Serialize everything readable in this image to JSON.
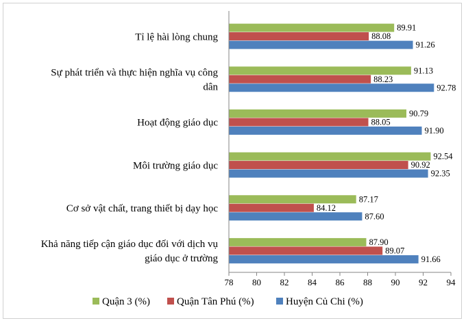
{
  "chart_data": {
    "type": "bar",
    "orientation": "horizontal",
    "categories": [
      [
        "Tỉ lệ hài lòng chung"
      ],
      [
        "Sự phát triển và thực hiện nghĩa vụ công",
        "dân"
      ],
      [
        "Hoạt động giáo dục"
      ],
      [
        "Môi trường giáo dục"
      ],
      [
        "Cơ sở vật chất, trang thiết bị dạy học"
      ],
      [
        "Khả năng tiếp cận giáo dục đối với dịch vụ",
        "giáo dục ở trường"
      ]
    ],
    "series": [
      {
        "name": "Quận 3 (%)",
        "color": "#9BBB59",
        "values": [
          89.91,
          91.13,
          90.79,
          92.54,
          87.17,
          87.9
        ],
        "labels": [
          "89.91",
          "91.13",
          "90.79",
          "92.54",
          "87.17",
          "87.90"
        ]
      },
      {
        "name": "Quận Tân Phú (%)",
        "color": "#C0504D",
        "values": [
          88.08,
          88.23,
          88.05,
          90.92,
          84.12,
          89.07
        ],
        "labels": [
          "88.08",
          "88.23",
          "88.05",
          "90.92",
          "84.12",
          "89.07"
        ]
      },
      {
        "name": "Huyện Củ Chi (%)",
        "color": "#4F81BD",
        "values": [
          91.26,
          92.78,
          91.9,
          92.35,
          87.6,
          91.66
        ],
        "labels": [
          "91.26",
          "92.78",
          "91.90",
          "92.35",
          "87.60",
          "91.66"
        ]
      }
    ],
    "xlim": [
      78,
      94
    ],
    "xticks": [
      "78",
      "80",
      "82",
      "84",
      "86",
      "88",
      "90",
      "92",
      "94"
    ],
    "title": "",
    "xlabel": "",
    "ylabel": "",
    "grid": false,
    "legend_position": "bottom"
  }
}
